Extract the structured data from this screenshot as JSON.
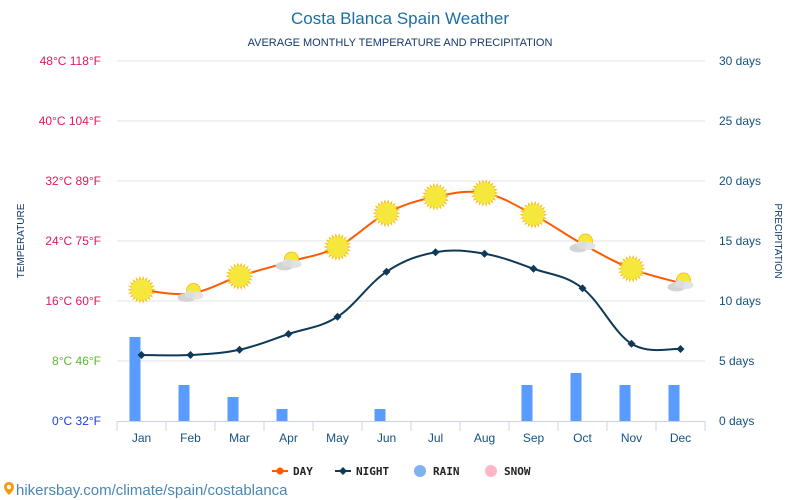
{
  "chart_data": {
    "type": "line",
    "title": "Costa Blanca Spain Weather",
    "subtitle": "AVERAGE MONTHLY TEMPERATURE AND PRECIPITATION",
    "categories": [
      "Jan",
      "Feb",
      "Mar",
      "Apr",
      "May",
      "Jun",
      "Jul",
      "Aug",
      "Sep",
      "Oct",
      "Nov",
      "Dec"
    ],
    "series": [
      {
        "name": "DAY",
        "type": "line",
        "axis": "left",
        "unit": "°C",
        "color": "#ff5a00",
        "values": [
          17.5,
          17.0,
          19.3,
          21.2,
          23.2,
          27.7,
          29.9,
          30.4,
          27.5,
          23.6,
          20.3,
          18.4
        ],
        "icons": [
          "sun",
          "partly-cloudy",
          "sun",
          "partly-cloudy",
          "sun",
          "sun",
          "sun",
          "sun",
          "sun",
          "partly-cloudy",
          "sun",
          "partly-cloudy"
        ]
      },
      {
        "name": "NIGHT",
        "type": "line",
        "axis": "left",
        "unit": "°C",
        "color": "#0e3a57",
        "values": [
          8.8,
          8.8,
          9.5,
          11.6,
          13.9,
          19.9,
          22.5,
          22.3,
          20.3,
          17.7,
          10.3,
          9.6
        ]
      },
      {
        "name": "RAIN",
        "type": "bar",
        "axis": "right",
        "unit": "days",
        "color": "#5a9bff",
        "values": [
          7,
          3,
          2,
          1,
          0,
          1,
          0,
          0,
          3,
          4,
          3,
          3
        ]
      },
      {
        "name": "SNOW",
        "type": "bar",
        "axis": "right",
        "unit": "days",
        "color": "#ffb6c8",
        "values": [
          0,
          0,
          0,
          0,
          0,
          0,
          0,
          0,
          0,
          0,
          0,
          0
        ]
      }
    ],
    "left_axis": {
      "label": "TEMPERATURE",
      "range": [
        0,
        48
      ],
      "ticks": [
        {
          "value": 0,
          "label": "0°C 32°F",
          "color": "#1a3fd9"
        },
        {
          "value": 8,
          "label": "8°C 46°F",
          "color": "#5cb82e"
        },
        {
          "value": 16,
          "label": "16°C 60°F",
          "color": "#e0195a"
        },
        {
          "value": 24,
          "label": "24°C 75°F",
          "color": "#e0195a"
        },
        {
          "value": 32,
          "label": "32°C 89°F",
          "color": "#e0195a"
        },
        {
          "value": 40,
          "label": "40°C 104°F",
          "color": "#e0195a"
        },
        {
          "value": 48,
          "label": "48°C 118°F",
          "color": "#e0195a"
        }
      ]
    },
    "right_axis": {
      "label": "PRECIPITATION",
      "range": [
        0,
        30
      ],
      "ticks": [
        {
          "value": 0,
          "label": "0 days"
        },
        {
          "value": 5,
          "label": "5 days"
        },
        {
          "value": 10,
          "label": "10 days"
        },
        {
          "value": 15,
          "label": "15 days"
        },
        {
          "value": 20,
          "label": "20 days"
        },
        {
          "value": 25,
          "label": "25 days"
        },
        {
          "value": 30,
          "label": "30 days"
        }
      ]
    },
    "grid": true,
    "legend_position": "bottom-center"
  },
  "legend": [
    {
      "label": "DAY",
      "marker": "line-dot",
      "color": "#ff5a00"
    },
    {
      "label": "NIGHT",
      "marker": "line-diamond",
      "color": "#0e3a57"
    },
    {
      "label": "RAIN",
      "marker": "circle",
      "color": "#7fb2f0"
    },
    {
      "label": "SNOW",
      "marker": "circle",
      "color": "#ffb6c8"
    }
  ],
  "source": {
    "icon": "location-pin-icon",
    "text": "hikersbay.com/climate/spain/costablanca"
  }
}
